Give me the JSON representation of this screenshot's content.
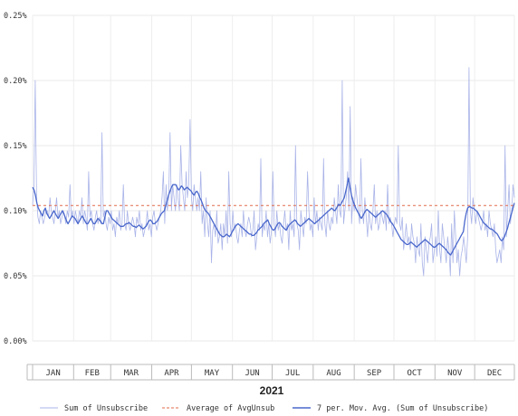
{
  "chart_data": {
    "type": "line",
    "year": "2021",
    "months": [
      "JAN",
      "FEB",
      "MAR",
      "APR",
      "MAY",
      "JUN",
      "JUL",
      "AUG",
      "SEP",
      "OCT",
      "NOV",
      "DEC"
    ],
    "y_ticks": [
      {
        "value": 0.0,
        "label": "0.00%"
      },
      {
        "value": 0.05,
        "label": "0.05%"
      },
      {
        "value": 0.1,
        "label": "0.10%"
      },
      {
        "value": 0.15,
        "label": "0.15%"
      },
      {
        "value": 0.2,
        "label": "0.20%"
      },
      {
        "value": 0.25,
        "label": "0.25%"
      }
    ],
    "ylim": [
      0,
      0.25
    ],
    "x_unit": "day of 2021",
    "xlim": [
      1,
      365
    ],
    "grid": "horizontal + monthly vertical",
    "series": [
      {
        "name": "Sum of Unsubscribe",
        "color": "#aab4e8",
        "style": "thin line",
        "values": [
          0.104,
          0.12,
          0.2,
          0.11,
          0.095,
          0.09,
          0.1,
          0.095,
          0.09,
          0.095,
          0.1,
          0.1,
          0.095,
          0.11,
          0.1,
          0.095,
          0.09,
          0.1,
          0.11,
          0.095,
          0.1,
          0.09,
          0.095,
          0.1,
          0.095,
          0.09,
          0.1,
          0.095,
          0.12,
          0.095,
          0.1,
          0.09,
          0.1,
          0.095,
          0.09,
          0.1,
          0.095,
          0.11,
          0.09,
          0.1,
          0.095,
          0.085,
          0.13,
          0.095,
          0.1,
          0.09,
          0.085,
          0.095,
          0.1,
          0.09,
          0.095,
          0.09,
          0.16,
          0.095,
          0.1,
          0.09,
          0.085,
          0.095,
          0.09,
          0.1,
          0.085,
          0.09,
          0.08,
          0.095,
          0.09,
          0.1,
          0.085,
          0.09,
          0.12,
          0.09,
          0.085,
          0.1,
          0.09,
          0.085,
          0.09,
          0.095,
          0.09,
          0.08,
          0.095,
          0.09,
          0.1,
          0.085,
          0.09,
          0.08,
          0.085,
          0.09,
          0.1,
          0.085,
          0.09,
          0.08,
          0.095,
          0.1,
          0.09,
          0.085,
          0.09,
          0.095,
          0.1,
          0.11,
          0.13,
          0.09,
          0.12,
          0.1,
          0.11,
          0.16,
          0.1,
          0.12,
          0.11,
          0.1,
          0.12,
          0.11,
          0.1,
          0.15,
          0.12,
          0.11,
          0.1,
          0.13,
          0.11,
          0.12,
          0.17,
          0.11,
          0.1,
          0.12,
          0.11,
          0.1,
          0.11,
          0.1,
          0.13,
          0.09,
          0.1,
          0.08,
          0.11,
          0.09,
          0.08,
          0.1,
          0.06,
          0.085,
          0.09,
          0.08,
          0.1,
          0.075,
          0.08,
          0.09,
          0.07,
          0.09,
          0.08,
          0.1,
          0.075,
          0.13,
          0.09,
          0.08,
          0.1,
          0.085,
          0.09,
          0.08,
          0.075,
          0.085,
          0.09,
          0.08,
          0.1,
          0.085,
          0.08,
          0.09,
          0.095,
          0.09,
          0.08,
          0.085,
          0.1,
          0.07,
          0.08,
          0.09,
          0.085,
          0.14,
          0.08,
          0.09,
          0.085,
          0.1,
          0.08,
          0.09,
          0.075,
          0.085,
          0.13,
          0.09,
          0.08,
          0.1,
          0.085,
          0.09,
          0.08,
          0.075,
          0.09,
          0.1,
          0.085,
          0.09,
          0.07,
          0.1,
          0.085,
          0.09,
          0.08,
          0.15,
          0.09,
          0.085,
          0.07,
          0.1,
          0.09,
          0.08,
          0.095,
          0.09,
          0.13,
          0.1,
          0.085,
          0.09,
          0.08,
          0.11,
          0.09,
          0.1,
          0.085,
          0.095,
          0.09,
          0.085,
          0.14,
          0.09,
          0.08,
          0.1,
          0.09,
          0.085,
          0.095,
          0.09,
          0.11,
          0.1,
          0.09,
          0.12,
          0.1,
          0.095,
          0.2,
          0.09,
          0.1,
          0.11,
          0.13,
          0.1,
          0.18,
          0.09,
          0.11,
          0.1,
          0.12,
          0.11,
          0.1,
          0.09,
          0.14,
          0.1,
          0.09,
          0.11,
          0.095,
          0.08,
          0.1,
          0.09,
          0.085,
          0.1,
          0.12,
          0.09,
          0.1,
          0.085,
          0.09,
          0.1,
          0.095,
          0.09,
          0.1,
          0.085,
          0.12,
          0.09,
          0.095,
          0.09,
          0.08,
          0.09,
          0.095,
          0.09,
          0.15,
          0.09,
          0.085,
          0.095,
          0.07,
          0.08,
          0.09,
          0.075,
          0.08,
          0.07,
          0.09,
          0.08,
          0.075,
          0.06,
          0.08,
          0.07,
          0.065,
          0.09,
          0.06,
          0.05,
          0.08,
          0.07,
          0.06,
          0.075,
          0.08,
          0.09,
          0.06,
          0.07,
          0.08,
          0.065,
          0.1,
          0.07,
          0.06,
          0.09,
          0.08,
          0.07,
          0.06,
          0.08,
          0.07,
          0.05,
          0.09,
          0.06,
          0.1,
          0.08,
          0.06,
          0.07,
          0.05,
          0.065,
          0.07,
          0.08,
          0.07,
          0.06,
          0.08,
          0.21,
          0.1,
          0.09,
          0.11,
          0.1,
          0.09,
          0.1,
          0.095,
          0.09,
          0.085,
          0.09,
          0.1,
          0.085,
          0.09,
          0.08,
          0.1,
          0.09,
          0.085,
          0.08,
          0.09,
          0.07,
          0.06,
          0.065,
          0.07,
          0.06,
          0.08,
          0.07,
          0.15,
          0.08,
          0.1,
          0.12,
          0.09,
          0.1,
          0.12,
          0.11
        ]
      },
      {
        "name": "Average of AvgUnsub",
        "color": "#e06a4a",
        "style": "dashed",
        "value": 0.104
      },
      {
        "name": "7 per. Mov. Avg. (Sum of Unsubscribe)",
        "color": "#4a68cc",
        "style": "thick line",
        "values": [
          0.118,
          0.116,
          0.112,
          0.106,
          0.102,
          0.1,
          0.098,
          0.096,
          0.1,
          0.102,
          0.098,
          0.096,
          0.094,
          0.096,
          0.098,
          0.1,
          0.098,
          0.096,
          0.094,
          0.096,
          0.098,
          0.1,
          0.098,
          0.095,
          0.092,
          0.09,
          0.092,
          0.094,
          0.096,
          0.095,
          0.094,
          0.092,
          0.09,
          0.092,
          0.094,
          0.096,
          0.094,
          0.092,
          0.09,
          0.09,
          0.092,
          0.094,
          0.092,
          0.09,
          0.09,
          0.092,
          0.094,
          0.093,
          0.092,
          0.09,
          0.09,
          0.095,
          0.1,
          0.1,
          0.098,
          0.096,
          0.094,
          0.093,
          0.092,
          0.091,
          0.09,
          0.089,
          0.088,
          0.088,
          0.088,
          0.089,
          0.09,
          0.09,
          0.091,
          0.09,
          0.089,
          0.088,
          0.088,
          0.087,
          0.088,
          0.089,
          0.088,
          0.087,
          0.086,
          0.087,
          0.088,
          0.09,
          0.092,
          0.093,
          0.092,
          0.09,
          0.09,
          0.091,
          0.092,
          0.094,
          0.096,
          0.098,
          0.099,
          0.1,
          0.104,
          0.108,
          0.112,
          0.115,
          0.118,
          0.12,
          0.12,
          0.12,
          0.118,
          0.116,
          0.117,
          0.119,
          0.118,
          0.116,
          0.117,
          0.118,
          0.117,
          0.116,
          0.115,
          0.113,
          0.112,
          0.114,
          0.115,
          0.113,
          0.11,
          0.108,
          0.105,
          0.102,
          0.1,
          0.099,
          0.098,
          0.096,
          0.094,
          0.092,
          0.09,
          0.088,
          0.086,
          0.084,
          0.082,
          0.081,
          0.08,
          0.08,
          0.081,
          0.082,
          0.081,
          0.08,
          0.082,
          0.084,
          0.086,
          0.088,
          0.089,
          0.09,
          0.089,
          0.088,
          0.087,
          0.086,
          0.085,
          0.084,
          0.083,
          0.082,
          0.082,
          0.081,
          0.081,
          0.082,
          0.083,
          0.085,
          0.086,
          0.087,
          0.088,
          0.09,
          0.091,
          0.092,
          0.093,
          0.09,
          0.088,
          0.086,
          0.085,
          0.086,
          0.088,
          0.09,
          0.091,
          0.09,
          0.088,
          0.087,
          0.086,
          0.085,
          0.087,
          0.089,
          0.09,
          0.091,
          0.092,
          0.093,
          0.092,
          0.09,
          0.089,
          0.088,
          0.089,
          0.09,
          0.091,
          0.092,
          0.093,
          0.094,
          0.093,
          0.092,
          0.091,
          0.09,
          0.091,
          0.092,
          0.093,
          0.094,
          0.095,
          0.096,
          0.097,
          0.098,
          0.099,
          0.1,
          0.101,
          0.102,
          0.101,
          0.1,
          0.101,
          0.103,
          0.105,
          0.104,
          0.106,
          0.108,
          0.11,
          0.115,
          0.12,
          0.125,
          0.118,
          0.112,
          0.108,
          0.105,
          0.102,
          0.1,
          0.098,
          0.096,
          0.094,
          0.096,
          0.098,
          0.1,
          0.101,
          0.1,
          0.099,
          0.098,
          0.097,
          0.096,
          0.095,
          0.096,
          0.097,
          0.098,
          0.099,
          0.1,
          0.099,
          0.098,
          0.097,
          0.095,
          0.093,
          0.091,
          0.09,
          0.088,
          0.086,
          0.084,
          0.082,
          0.08,
          0.078,
          0.077,
          0.076,
          0.075,
          0.074,
          0.074,
          0.075,
          0.076,
          0.075,
          0.074,
          0.073,
          0.072,
          0.073,
          0.074,
          0.075,
          0.076,
          0.077,
          0.078,
          0.077,
          0.076,
          0.075,
          0.074,
          0.073,
          0.072,
          0.072,
          0.073,
          0.074,
          0.075,
          0.074,
          0.073,
          0.072,
          0.071,
          0.07,
          0.068,
          0.067,
          0.066,
          0.068,
          0.07,
          0.072,
          0.074,
          0.076,
          0.078,
          0.08,
          0.082,
          0.084,
          0.092,
          0.098,
          0.102,
          0.103,
          0.103,
          0.102,
          0.102,
          0.101,
          0.1,
          0.099,
          0.097,
          0.095,
          0.093,
          0.091,
          0.09,
          0.089,
          0.088,
          0.087,
          0.086,
          0.086,
          0.085,
          0.084,
          0.083,
          0.082,
          0.08,
          0.078,
          0.077,
          0.078,
          0.08,
          0.083,
          0.086,
          0.09,
          0.094,
          0.098,
          0.102,
          0.106
        ]
      }
    ],
    "legend": {
      "position": "bottom",
      "items": [
        {
          "label": "Sum of Unsubscribe",
          "color": "#aab4e8",
          "style": "solid"
        },
        {
          "label": "Average of AvgUnsub",
          "color": "#e06a4a",
          "style": "dashed"
        },
        {
          "label": "7 per. Mov. Avg. (Sum of Unsubscribe)",
          "color": "#4a68cc",
          "style": "solid"
        }
      ]
    }
  }
}
